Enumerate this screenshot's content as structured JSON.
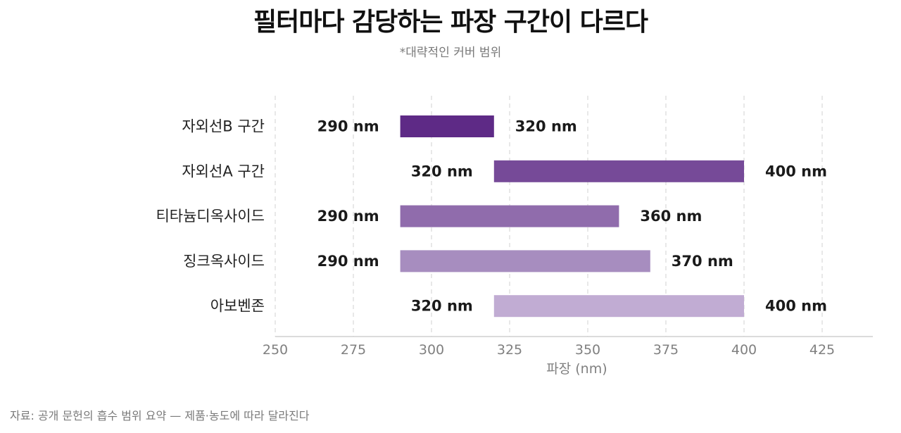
{
  "chart_data": {
    "type": "bar",
    "orientation": "horizontal-range",
    "title": "필터마다 감당하는 파장 구간이 다르다",
    "subtitle": "*대략적인 커버 범위",
    "xlabel": "파장 (nm)",
    "xlim": [
      250,
      432
    ],
    "xticks": [
      250,
      275,
      300,
      325,
      350,
      375,
      400,
      425
    ],
    "grid": true,
    "value_unit": "nm",
    "categories": [
      "자외선B 구간",
      "자외선A 구간",
      "티타늄디옥사이드",
      "징크옥사이드",
      "아보벤존"
    ],
    "ranges": [
      {
        "start": 290,
        "end": 320,
        "start_label": "290 nm",
        "end_label": "320 nm",
        "color": "#5e2a86"
      },
      {
        "start": 320,
        "end": 400,
        "start_label": "320 nm",
        "end_label": "400 nm",
        "color": "#764a98"
      },
      {
        "start": 290,
        "end": 360,
        "start_label": "290 nm",
        "end_label": "360 nm",
        "color": "#906cac"
      },
      {
        "start": 290,
        "end": 370,
        "start_label": "290 nm",
        "end_label": "370 nm",
        "color": "#a78dbf"
      },
      {
        "start": 320,
        "end": 400,
        "start_label": "320 nm",
        "end_label": "400 nm",
        "color": "#c1acd3"
      }
    ]
  },
  "source": "자료: 공개 문헌의 흡수 범위 요약 — 제품·농도에 따라 달라진다"
}
